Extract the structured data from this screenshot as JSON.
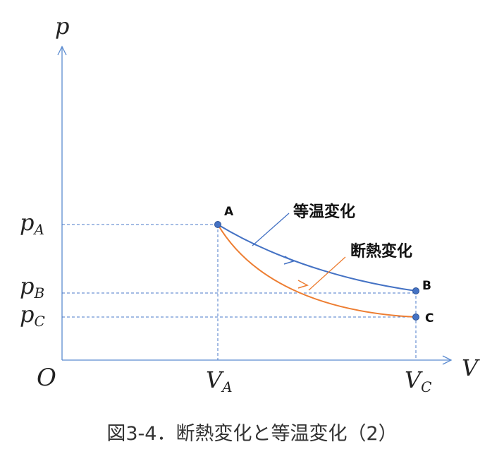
{
  "axes": {
    "y_label": "p",
    "x_label": "V",
    "origin_label": "O"
  },
  "pressure_levels": {
    "pA": {
      "base": "p",
      "sub": "A"
    },
    "pB": {
      "base": "p",
      "sub": "B"
    },
    "pC": {
      "base": "p",
      "sub": "C"
    }
  },
  "volume_levels": {
    "VA": {
      "base": "V",
      "sub": "A"
    },
    "VC": {
      "base": "V",
      "sub": "C"
    }
  },
  "points": {
    "A": "A",
    "B": "B",
    "C": "C"
  },
  "curves": {
    "isothermal": {
      "label": "等温変化",
      "color": "#4472C4"
    },
    "adiabatic": {
      "label": "断熱変化",
      "color": "#ED7D31"
    }
  },
  "colors": {
    "axis": "#5B8BD0",
    "guide": "#4A78C8",
    "point": "#4472C4"
  },
  "caption": "図3-4．断熱変化と等温変化（2）"
}
